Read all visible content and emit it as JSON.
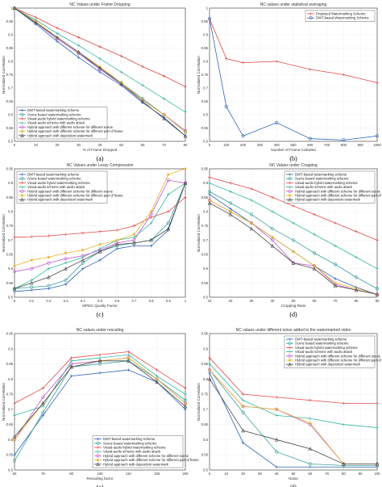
{
  "colors": {
    "dwt": "#2e63b8",
    "scene": "#3aa0a0",
    "visual": "#e04848",
    "audioattack": "#35b5a0",
    "hybrid_diff_scene": "#c25bd0",
    "hybrid_diff_part": "#e8b429",
    "hybrid_dep": "#4a4a4a",
    "proposed": "#e04848"
  },
  "chart_data": [
    {
      "type": "line",
      "title": "NC Values under Frame Dropping",
      "xlabel": "% of Frame Dropped",
      "ylabel": "Normalized Correlation",
      "caption": "(a)",
      "xlim": [
        0,
        80
      ],
      "ylim": [
        0.5,
        1
      ],
      "xticks": [
        0,
        10,
        20,
        30,
        40,
        50,
        60,
        70,
        80
      ],
      "yticks": [
        0.5,
        0.55,
        0.6,
        0.65,
        0.7,
        0.75,
        0.8,
        0.85,
        0.9,
        0.95,
        1
      ],
      "ytick_labels": [
        "0.5",
        "0.55",
        "0.6",
        "0.65",
        "0.7",
        "0.75",
        "0.8",
        "0.85",
        "0.9",
        "0.95",
        "1"
      ],
      "legend_position": "bottom-left",
      "x": [
        0,
        10,
        20,
        30,
        40,
        50,
        60,
        70,
        80
      ],
      "series": [
        {
          "name": "DWT-based watermarking scheme",
          "color": "#2e63b8",
          "marker": "plus",
          "values": [
            1,
            0.94,
            0.875,
            0.815,
            0.76,
            0.71,
            0.645,
            0.59,
            0.52
          ]
        },
        {
          "name": "Scene based watermarking scheme",
          "color": "#3aa0a0",
          "marker": "circle",
          "values": [
            1,
            0.945,
            0.885,
            0.83,
            0.775,
            0.72,
            0.66,
            0.6,
            0.535
          ]
        },
        {
          "name": "Visual-audio hybrid watermarking scheme",
          "color": "#e04848",
          "marker": "plus",
          "values": [
            1,
            0.965,
            0.925,
            0.89,
            0.855,
            0.82,
            0.78,
            0.745,
            0.705
          ]
        },
        {
          "name": "Visual-audio scheme with audio attack",
          "color": "#35b5a0",
          "marker": "plus",
          "values": [
            1,
            0.955,
            0.905,
            0.86,
            0.81,
            0.76,
            0.71,
            0.66,
            0.61
          ]
        },
        {
          "name": "Hybrid approach with different scheme for different scene",
          "color": "#c25bd0",
          "marker": "circle",
          "values": [
            1,
            0.945,
            0.885,
            0.83,
            0.77,
            0.715,
            0.655,
            0.6,
            0.54
          ]
        },
        {
          "name": "Hybrid approach with different scheme for different part of frame",
          "color": "#e8b429",
          "marker": "star",
          "values": [
            1,
            0.95,
            0.89,
            0.835,
            0.78,
            0.72,
            0.655,
            0.6,
            0.535
          ]
        },
        {
          "name": "Hybrid approach with dependent watermark",
          "color": "#4a4a4a",
          "marker": "triangle",
          "values": [
            1,
            0.945,
            0.89,
            0.835,
            0.775,
            0.715,
            0.65,
            0.585,
            0.52
          ]
        }
      ]
    },
    {
      "type": "line",
      "title": "NC values under statistical averaging",
      "xlabel": "Number of Frame Colluded",
      "ylabel": "Normalized Correlation",
      "caption": "(b)",
      "xlim": [
        0,
        1000
      ],
      "ylim": [
        0.5,
        1
      ],
      "xticks": [
        0,
        100,
        200,
        300,
        400,
        500,
        600,
        700,
        800,
        900,
        1000
      ],
      "yticks": [
        0.5,
        0.55,
        0.6,
        0.65,
        0.7,
        0.75,
        0.8,
        0.85,
        0.9,
        0.95,
        1
      ],
      "ytick_labels": [
        "0.5",
        "0.55",
        "0.6",
        "0.65",
        "0.7",
        "0.75",
        "0.8",
        "0.85",
        "0.9",
        "0.95",
        "1"
      ],
      "legend_position": "top-right",
      "x": [
        0,
        100,
        200,
        400,
        600,
        800,
        1000
      ],
      "series": [
        {
          "name": "Proposed Watermarking Scheme",
          "color": "#e04848",
          "marker": "plus",
          "values": [
            0.96,
            0.81,
            0.795,
            0.8,
            0.77,
            0.75,
            0.72
          ]
        },
        {
          "name": "DWT-based  Watermarking Scheme",
          "color": "#2e63b8",
          "marker": "circle",
          "values": [
            0.96,
            0.63,
            0.52,
            0.57,
            0.51,
            0.505,
            0.52
          ]
        }
      ]
    },
    {
      "type": "line",
      "title": "NC Values under Lossy Compression",
      "xlabel": "MPEG Quality Factor",
      "ylabel": "Normalized Correlation",
      "caption": "(c)",
      "xlim": [
        0,
        1
      ],
      "ylim": [
        0.5,
        0.95
      ],
      "xticks": [
        0,
        0.1,
        0.2,
        0.3,
        0.4,
        0.5,
        0.6,
        0.7,
        0.8,
        0.9,
        1
      ],
      "yticks": [
        0.5,
        0.55,
        0.6,
        0.65,
        0.7,
        0.75,
        0.8,
        0.85,
        0.9,
        0.95
      ],
      "ytick_labels": [
        "0.5",
        "0.55",
        "0.6",
        "0.65",
        "0.7",
        "0.75",
        "0.8",
        "0.85",
        "0.9",
        "0.95"
      ],
      "legend_position": "top-left",
      "x": [
        0,
        0.1,
        0.2,
        0.3,
        0.4,
        0.5,
        0.6,
        0.7,
        0.8,
        0.9,
        1
      ],
      "series": [
        {
          "name": "DWT-based watermarking scheme",
          "color": "#2e63b8",
          "marker": "plus",
          "values": [
            0.52,
            0.525,
            0.53,
            0.545,
            0.6,
            0.63,
            0.67,
            0.68,
            0.68,
            0.735,
            0.9
          ]
        },
        {
          "name": "Scene based watermarking scheme",
          "color": "#3aa0a0",
          "marker": "circle",
          "values": [
            0.53,
            0.535,
            0.54,
            0.56,
            0.62,
            0.66,
            0.68,
            0.69,
            0.7,
            0.76,
            0.9
          ]
        },
        {
          "name": "Visual-audio hybrid watermarking scheme",
          "color": "#e04848",
          "marker": "plus",
          "values": [
            0.71,
            0.712,
            0.715,
            0.72,
            0.725,
            0.73,
            0.735,
            0.75,
            0.78,
            0.8,
            0.85
          ]
        },
        {
          "name": "Visual-audio scheme with audio attack",
          "color": "#35b5a0",
          "marker": "plus",
          "values": [
            0.53,
            0.56,
            0.6,
            0.62,
            0.64,
            0.67,
            0.7,
            0.71,
            0.76,
            0.86,
            0.9
          ]
        },
        {
          "name": "Hybrid approach with different scheme for different scene",
          "color": "#c25bd0",
          "marker": "circle",
          "values": [
            0.59,
            0.6,
            0.62,
            0.635,
            0.645,
            0.665,
            0.69,
            0.7,
            0.79,
            0.91,
            0.9
          ]
        },
        {
          "name": "Hybrid approach with different scheme for different part of frame",
          "color": "#e8b429",
          "marker": "star",
          "values": [
            0.61,
            0.63,
            0.64,
            0.655,
            0.665,
            0.685,
            0.7,
            0.72,
            0.8,
            0.93,
            0.95
          ]
        },
        {
          "name": "Hybrid approach with dependent watermark",
          "color": "#4a4a4a",
          "marker": "triangle",
          "values": [
            0.53,
            0.55,
            0.57,
            0.6,
            0.63,
            0.66,
            0.685,
            0.69,
            0.7,
            0.74,
            0.9
          ]
        }
      ]
    },
    {
      "type": "line",
      "title": "NC Values under Cropping",
      "xlabel": "Cropping Ratio",
      "ylabel": "Normalized Correlation",
      "caption": "(d)",
      "xlim": [
        10,
        90
      ],
      "ylim": [
        0.5,
        0.95
      ],
      "xticks": [
        10,
        20,
        30,
        40,
        50,
        60,
        70,
        80,
        90
      ],
      "yticks": [
        0.5,
        0.55,
        0.6,
        0.65,
        0.7,
        0.75,
        0.8,
        0.85,
        0.9,
        0.95
      ],
      "ytick_labels": [
        "0.5",
        "0.55",
        "0.6",
        "0.65",
        "0.7",
        "0.75",
        "0.8",
        "0.85",
        "0.9",
        "0.95"
      ],
      "legend_position": "top-right",
      "x": [
        10,
        20,
        30,
        40,
        50,
        60,
        70,
        80,
        90
      ],
      "series": [
        {
          "name": "DWT-based watermarking scheme",
          "color": "#2e63b8",
          "marker": "plus",
          "values": [
            0.86,
            0.81,
            0.76,
            0.71,
            0.66,
            0.61,
            0.565,
            0.535,
            0.51
          ]
        },
        {
          "name": "Scene based watermarking scheme",
          "color": "#3aa0a0",
          "marker": "circle",
          "values": [
            0.87,
            0.83,
            0.79,
            0.74,
            0.7,
            0.655,
            0.615,
            0.57,
            0.53
          ]
        },
        {
          "name": "Visual-audio hybrid watermarking scheme",
          "color": "#e04848",
          "marker": "plus",
          "values": [
            0.92,
            0.9,
            0.88,
            0.85,
            0.82,
            0.79,
            0.76,
            0.73,
            0.7
          ]
        },
        {
          "name": "Visual-audio scheme with audio attack",
          "color": "#35b5a0",
          "marker": "plus",
          "values": [
            0.9,
            0.87,
            0.84,
            0.8,
            0.76,
            0.72,
            0.68,
            0.64,
            0.6
          ]
        },
        {
          "name": "Hybrid approach with different scheme for different scene",
          "color": "#c25bd0",
          "marker": "circle",
          "values": [
            0.84,
            0.8,
            0.76,
            0.7,
            0.62,
            0.61,
            0.545,
            0.525,
            0.51
          ]
        },
        {
          "name": "Hybrid approach with different scheme for different part of frame",
          "color": "#e8b429",
          "marker": "star",
          "values": [
            0.84,
            0.8,
            0.76,
            0.71,
            0.66,
            0.61,
            0.55,
            0.53,
            0.51
          ]
        },
        {
          "name": "Hybrid approach with dependent watermark",
          "color": "#4a4a4a",
          "marker": "triangle",
          "values": [
            0.83,
            0.79,
            0.74,
            0.68,
            0.62,
            0.6,
            0.54,
            0.525,
            0.51
          ]
        }
      ]
    },
    {
      "type": "line",
      "title": "NC values under rescaling",
      "xlabel": "Rescaling factor",
      "ylabel": "Normalized Correlation",
      "caption": "(e)",
      "xlim": [
        0,
        6
      ],
      "ylim": [
        0.5,
        0.95
      ],
      "xticks": [
        0,
        1,
        2,
        3,
        4,
        5,
        6
      ],
      "xtick_labels": [
        "50",
        "75",
        "90",
        "100",
        "110",
        "150",
        "200"
      ],
      "yticks": [
        0.5,
        0.55,
        0.6,
        0.65,
        0.7,
        0.75,
        0.8,
        0.85,
        0.9,
        0.95
      ],
      "ytick_labels": [
        "0.5",
        "0.55",
        "0.6",
        "0.65",
        "0.7",
        "0.75",
        "0.8",
        "0.85",
        "0.9",
        "0.95"
      ],
      "legend_position": "bottom-right",
      "x": [
        0,
        1,
        2,
        3,
        4,
        5,
        6
      ],
      "series": [
        {
          "name": "DWT-based watermarking scheme",
          "color": "#2e63b8",
          "marker": "plus",
          "values": [
            0.55,
            0.68,
            0.81,
            0.82,
            0.83,
            0.79,
            0.7
          ]
        },
        {
          "name": "Scene based watermarking scheme",
          "color": "#3aa0a0",
          "marker": "circle",
          "values": [
            0.53,
            0.69,
            0.84,
            0.85,
            0.86,
            0.8,
            0.73
          ]
        },
        {
          "name": "Visual-audio hybrid watermarking scheme",
          "color": "#e04848",
          "marker": "plus",
          "values": [
            0.72,
            0.77,
            0.87,
            0.88,
            0.89,
            0.83,
            0.77
          ]
        },
        {
          "name": "Visual-audio scheme with audio attack",
          "color": "#35b5a0",
          "marker": "plus",
          "values": [
            0.68,
            0.71,
            0.86,
            0.87,
            0.88,
            0.81,
            0.75
          ]
        },
        {
          "name": "Hybrid approach with different scheme for different scene",
          "color": "#c25bd0",
          "marker": "circle",
          "values": [
            0.6,
            0.74,
            0.85,
            0.86,
            0.87,
            0.8,
            0.72
          ]
        },
        {
          "name": "Hybrid approach with different scheme for different part of frame",
          "color": "#e8b429",
          "marker": "star",
          "values": [
            0.6,
            0.72,
            0.84,
            0.86,
            0.87,
            0.8,
            0.72
          ]
        },
        {
          "name": "Hybrid approach with dependent watermark",
          "color": "#4a4a4a",
          "marker": "triangle",
          "values": [
            0.61,
            0.72,
            0.84,
            0.86,
            0.86,
            0.79,
            0.71
          ]
        }
      ]
    },
    {
      "type": "line",
      "title": "NC values under different noise added to the watermarked video",
      "xlabel": "Noise",
      "ylabel": "Normalized Correlation",
      "caption": "(f)",
      "xlim": [
        0,
        100
      ],
      "ylim": [
        0.5,
        0.95
      ],
      "xticks": [
        0,
        10,
        20,
        30,
        40,
        50,
        60,
        70,
        80,
        90,
        100
      ],
      "yticks": [
        0.5,
        0.55,
        0.6,
        0.65,
        0.7,
        0.75,
        0.8,
        0.85,
        0.9,
        0.95
      ],
      "ytick_labels": [
        "0.5",
        "0.55",
        "0.6",
        "0.65",
        "0.7",
        "0.75",
        "0.8",
        "0.85",
        "0.9",
        "0.95"
      ],
      "legend_position": "top-right",
      "x": [
        0,
        20,
        40,
        60,
        80,
        100
      ],
      "series": [
        {
          "name": "DWT-based watermarking scheme",
          "color": "#2e63b8",
          "marker": "plus",
          "values": [
            0.82,
            0.59,
            0.51,
            0.51,
            0.51,
            0.51
          ]
        },
        {
          "name": "Scene based watermarking scheme",
          "color": "#3aa0a0",
          "marker": "circle",
          "values": [
            0.83,
            0.69,
            0.56,
            0.52,
            0.515,
            0.515
          ]
        },
        {
          "name": "Visual-audio hybrid watermarking scheme",
          "color": "#e04848",
          "marker": "plus",
          "values": [
            0.87,
            0.75,
            0.74,
            0.73,
            0.72,
            0.72
          ]
        },
        {
          "name": "Visual-audio scheme with audio attack",
          "color": "#35b5a0",
          "marker": "plus",
          "values": [
            0.85,
            0.73,
            0.68,
            0.67,
            0.65,
            0.64
          ]
        },
        {
          "name": "Hybrid approach with different scheme for different scene",
          "color": "#c25bd0",
          "marker": "circle",
          "values": [
            0.83,
            0.71,
            0.7,
            0.65,
            0.52,
            0.52
          ]
        },
        {
          "name": "Hybrid approach with different scheme for different part of frame",
          "color": "#e8b429",
          "marker": "star",
          "values": [
            0.83,
            0.71,
            0.7,
            0.655,
            0.52,
            0.52
          ]
        },
        {
          "name": "Hybrid approach with dependent watermark",
          "color": "#4a4a4a",
          "marker": "triangle",
          "values": [
            0.8,
            0.63,
            0.6,
            0.57,
            0.52,
            0.52
          ]
        }
      ]
    }
  ]
}
